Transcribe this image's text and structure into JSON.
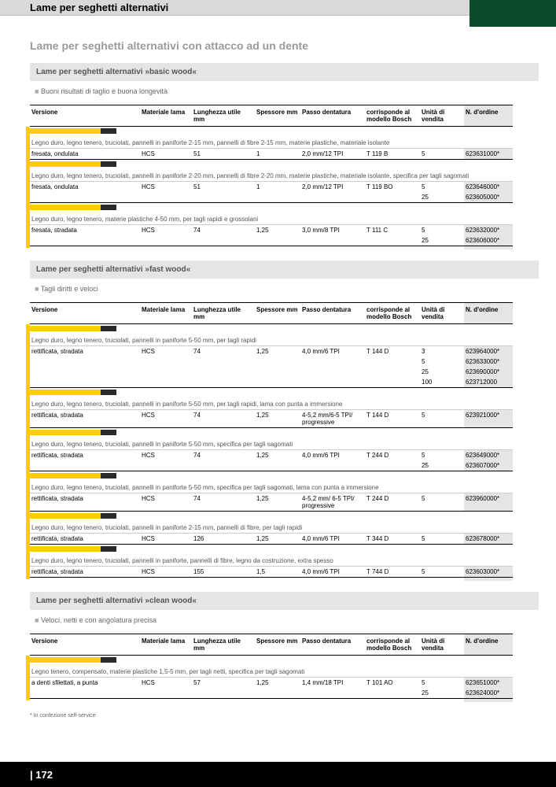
{
  "header": {
    "title": "Lame per seghetti alternativi",
    "subtitle": "Lame per seghetti alternativi con attacco ad un dente"
  },
  "columns": {
    "versione": "Versione",
    "materiale": "Materiale lama",
    "lunghezza": "Lunghezza utile mm",
    "spessore": "Spessore mm",
    "passo": "Passo dentatura",
    "corrisponde": "corrisponde al modello Bosch",
    "unita": "Unità di vendita",
    "ordine": "N. d'ordine"
  },
  "sections": [
    {
      "title": "Lame per seghetti alternativi »basic wood«",
      "feature": "Buoni risultati di taglio e buona longevità",
      "groups": [
        {
          "desc": "Legno duro, legno tenero, truciolati, pannelli in paniforte 2-15 mm, pannelli di fibre 2-15 mm, materie plastiche, materiale isolante",
          "rows": [
            {
              "v": "fresata, ondulata",
              "m": "HCS",
              "l": "51",
              "s": "1",
              "p": "2,0 mm/12 TPI",
              "c": "T 119 B",
              "u": "5",
              "o": "623631000*"
            }
          ]
        },
        {
          "desc": "Legno duro, legno tenero, truciolati, pannelli in paniforte 2-20 mm, pannelli di fibre 2-20 mm, materie plastiche, materiale isolante, specifica per tagli sagomati",
          "rows": [
            {
              "v": "fresata, ondulata",
              "m": "HCS",
              "l": "51",
              "s": "1",
              "p": "2,0 mm/12 TPI",
              "c": "T 119 BO",
              "u": "5",
              "o": "623646000*"
            },
            {
              "v": "",
              "m": "",
              "l": "",
              "s": "",
              "p": "",
              "c": "",
              "u": "25",
              "o": "623605000*"
            }
          ]
        },
        {
          "desc": "Legno duro, legno tenero, materie plastiche 4-50 mm, per tagli rapidi e grossolani",
          "rows": [
            {
              "v": "fresata, stradata",
              "m": "HCS",
              "l": "74",
              "s": "1,25",
              "p": "3,0 mm/8 TPI",
              "c": "T 111 C",
              "u": "5",
              "o": "623632000*"
            },
            {
              "v": "",
              "m": "",
              "l": "",
              "s": "",
              "p": "",
              "c": "",
              "u": "25",
              "o": "623606000*"
            }
          ]
        }
      ]
    },
    {
      "title": "Lame per seghetti alternativi »fast wood«",
      "feature": "Tagli diritti e veloci",
      "groups": [
        {
          "desc": "Legno duro, legno tenero, truciolati, pannelli in paniforte 5-50 mm, per tagli rapidi",
          "rows": [
            {
              "v": "rettificata, stradata",
              "m": "HCS",
              "l": "74",
              "s": "1,25",
              "p": "4,0 mm/6 TPI",
              "c": "T 144 D",
              "u": "3",
              "o": "623964000*"
            },
            {
              "v": "",
              "m": "",
              "l": "",
              "s": "",
              "p": "",
              "c": "",
              "u": "5",
              "o": "623633000*"
            },
            {
              "v": "",
              "m": "",
              "l": "",
              "s": "",
              "p": "",
              "c": "",
              "u": "25",
              "o": "623690000*"
            },
            {
              "v": "",
              "m": "",
              "l": "",
              "s": "",
              "p": "",
              "c": "",
              "u": "100",
              "o": "623712000"
            }
          ]
        },
        {
          "desc": "Legno duro, legno tenero, truciolati, pannelli in paniforte 5-50 mm, per tagli rapidi, lama con punta a immersione",
          "rows": [
            {
              "v": "rettificata, stradata",
              "m": "HCS",
              "l": "74",
              "s": "1,25",
              "p": "4-5,2 mm/6-5 TPI/ progressive",
              "c": "T 144 D",
              "u": "5",
              "o": "623921000*"
            }
          ]
        },
        {
          "desc": "Legno duro, legno tenero, truciolati, pannelli in paniforte 5-50 mm, specifica per tagli sagomati",
          "rows": [
            {
              "v": "rettificata, stradata",
              "m": "HCS",
              "l": "74",
              "s": "1,25",
              "p": "4,0 mm/6 TPI",
              "c": "T 244 D",
              "u": "5",
              "o": "623649000*"
            },
            {
              "v": "",
              "m": "",
              "l": "",
              "s": "",
              "p": "",
              "c": "",
              "u": "25",
              "o": "623607000*"
            }
          ]
        },
        {
          "desc": "Legno duro, legno tenero, truciolati, pannelli in paniforte 5-50 mm, specifica per tagli sagomati, lama con punta a immersione",
          "rows": [
            {
              "v": "rettificata, stradata",
              "m": "HCS",
              "l": "74",
              "s": "1,25",
              "p": "4-5,2 mm/ 6-5 TPI/ progressive",
              "c": "T 244 D",
              "u": "5",
              "o": "623960000*"
            }
          ]
        },
        {
          "desc": "Legno duro, legno tenero, truciolati, pannelli in paniforte 2-15 mm, pannelli di fibre, per tagli rapidi",
          "rows": [
            {
              "v": "rettificata, stradata",
              "m": "HCS",
              "l": "126",
              "s": "1,25",
              "p": "4,0 mm/6 TPI",
              "c": "T 344 D",
              "u": "5",
              "o": "623678000*"
            }
          ]
        },
        {
          "desc": "Legno duro, legno tenero, truciolati, pannelli in paniforte, pannelli di fibre, legno da costruzione, extra spesso",
          "rows": [
            {
              "v": "rettificata, stradata",
              "m": "HCS",
              "l": "155",
              "s": "1,5",
              "p": "4,0 mm/6 TPI",
              "c": "T 744 D",
              "u": "5",
              "o": "623603000*"
            }
          ]
        }
      ]
    },
    {
      "title": "Lame per seghetti alternativi »clean wood«",
      "feature": "Veloci, netti e con angolatura precisa",
      "groups": [
        {
          "desc": "Legno tenero, compensato, materie plastiche 1,5-5 mm, per tagli netti, specifica per tagli sagomati",
          "rows": [
            {
              "v": "a denti sfilettati, a punta",
              "m": "HCS",
              "l": "57",
              "s": "1,25",
              "p": "1,4 mm/18 TPI",
              "c": "T 101 AO",
              "u": "5",
              "o": "623651000*"
            },
            {
              "v": "",
              "m": "",
              "l": "",
              "s": "",
              "p": "",
              "c": "",
              "u": "25",
              "o": "623624000*"
            }
          ]
        }
      ]
    }
  ],
  "footnote": "* In confezione self-service",
  "pageNumber": "| 172"
}
